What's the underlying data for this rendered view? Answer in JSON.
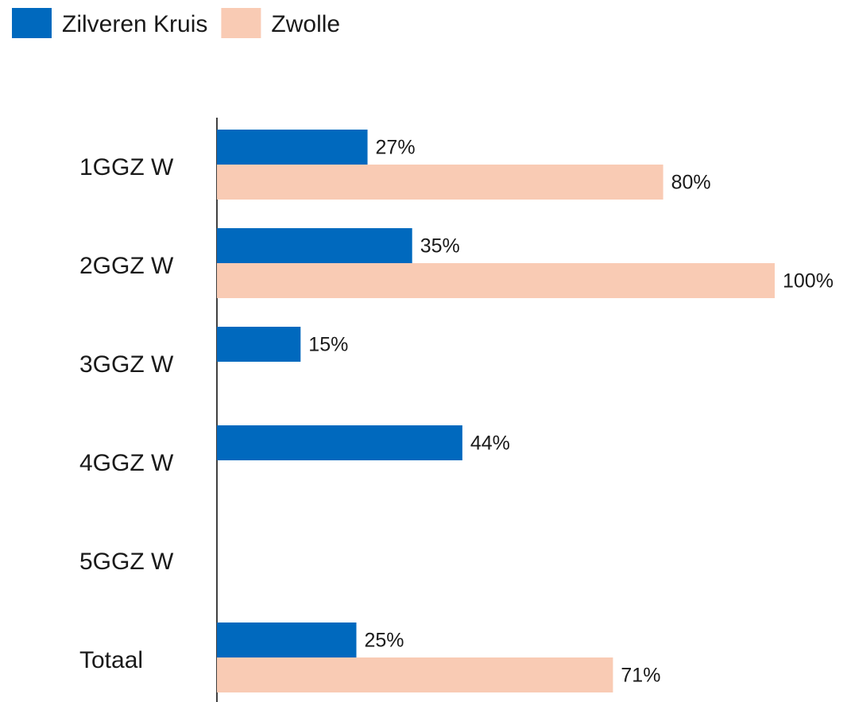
{
  "chart_data": {
    "type": "hbar",
    "categories": [
      "1GGZ W",
      "2GGZ W",
      "3GGZ W",
      "4GGZ W",
      "5GGZ W",
      "Totaal"
    ],
    "series": [
      {
        "name": "Zilveren Kruis",
        "color": "#0069be",
        "values": [
          27,
          35,
          15,
          44,
          null,
          25
        ],
        "value_labels": [
          "27%",
          "35%",
          "15%",
          "44%",
          null,
          "25%"
        ]
      },
      {
        "name": "Zwolle",
        "color": "#f9cbb4",
        "values": [
          80,
          100,
          null,
          null,
          null,
          71
        ],
        "value_labels": [
          "80%",
          "100%",
          null,
          null,
          null,
          "71%"
        ]
      }
    ],
    "xlim": [
      0,
      100
    ]
  }
}
